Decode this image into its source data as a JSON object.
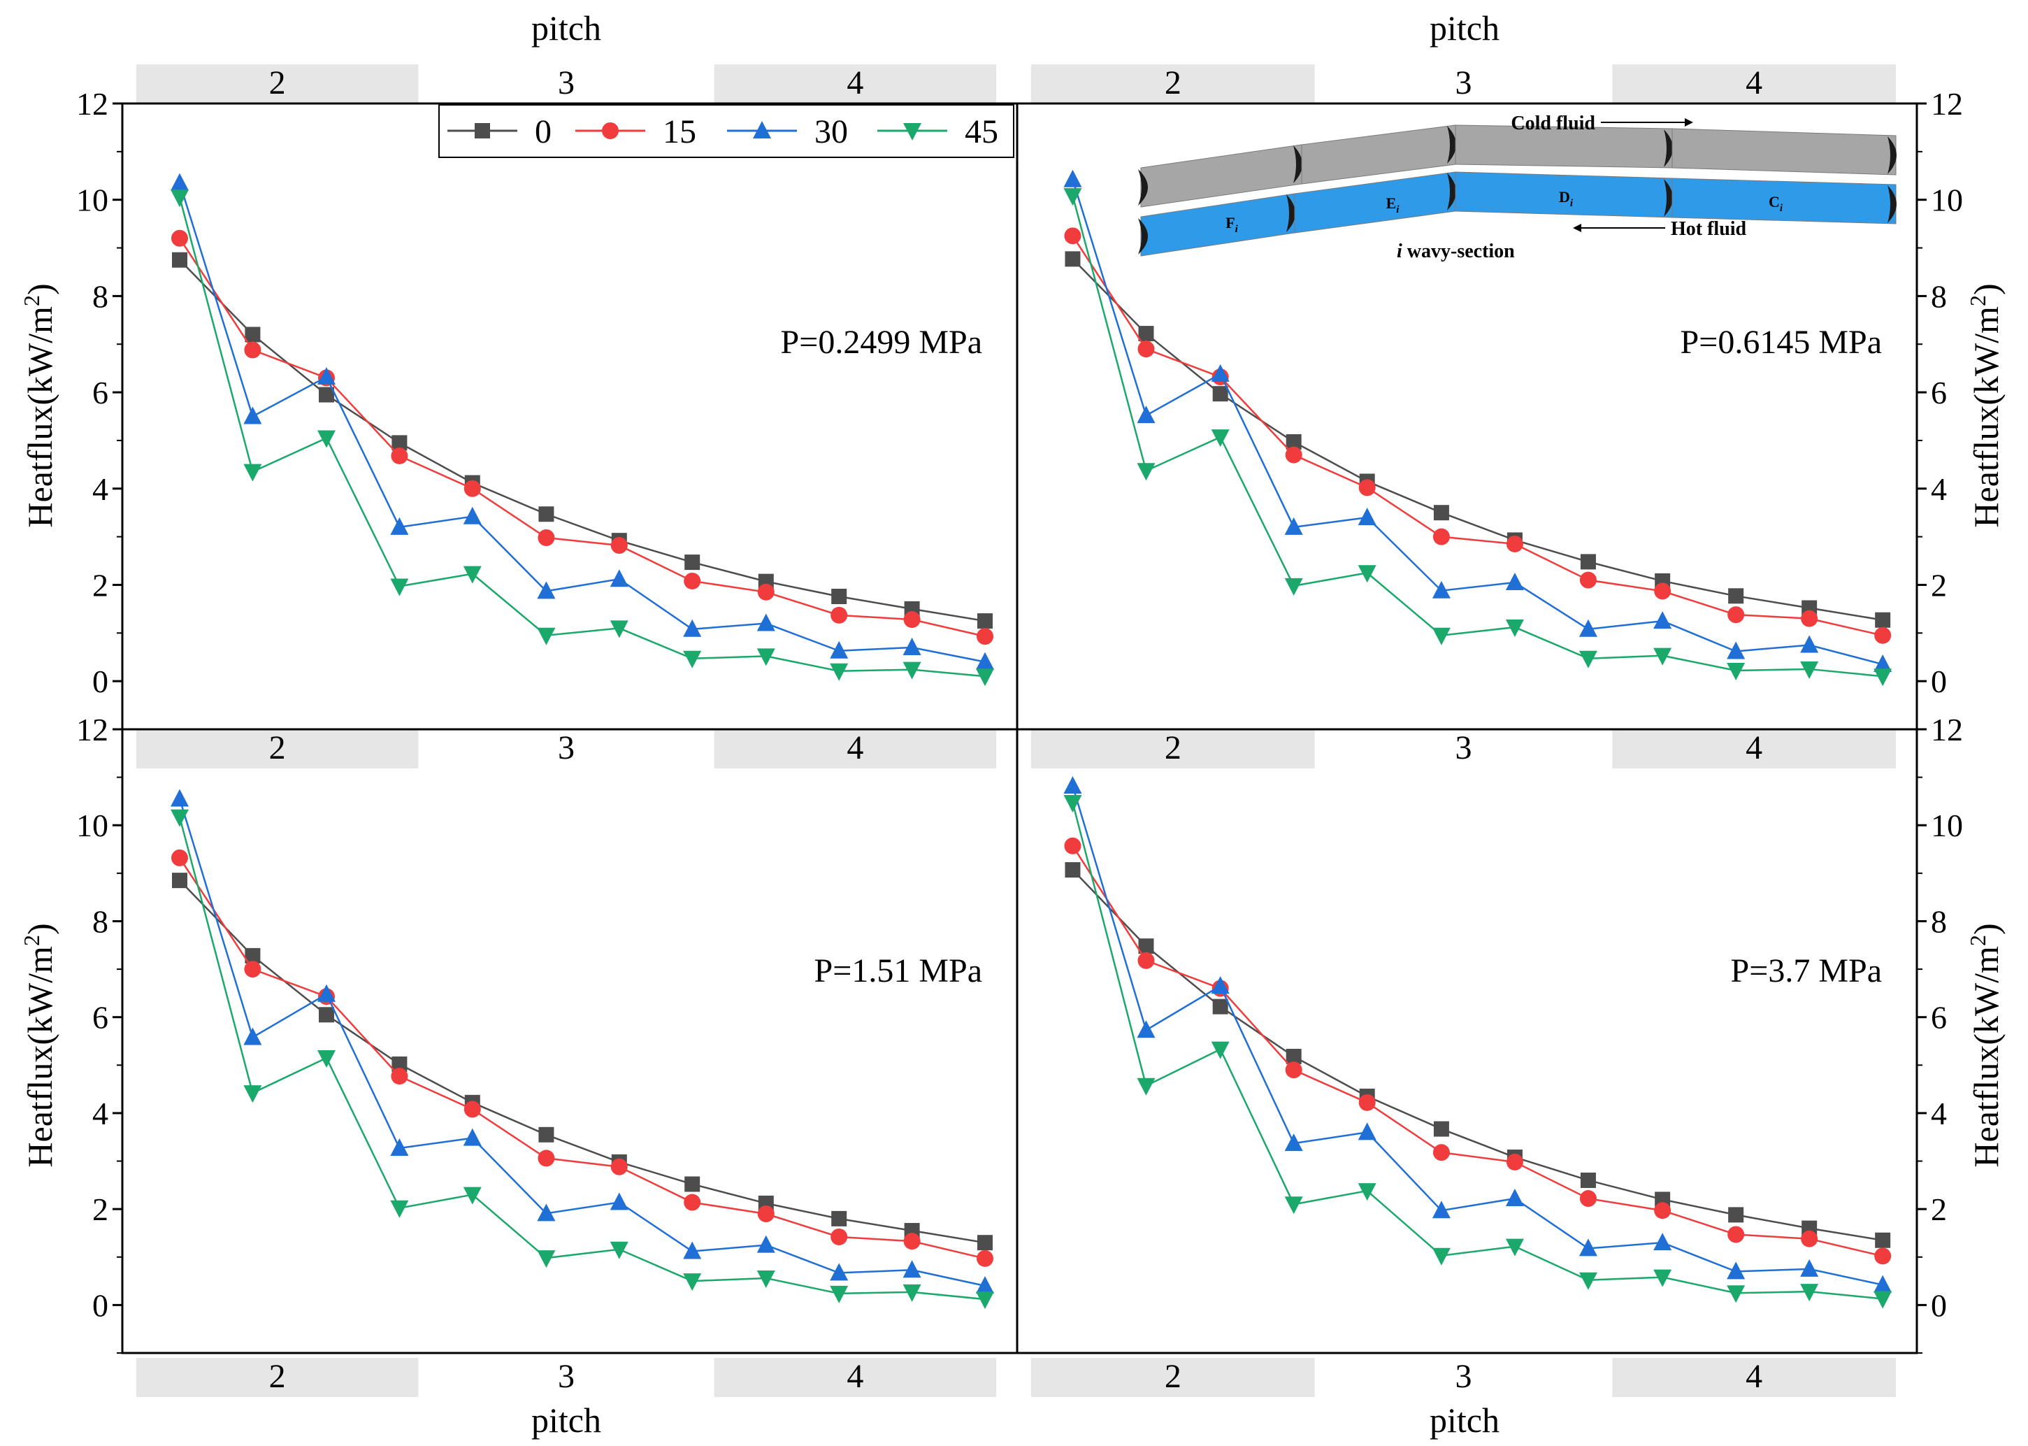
{
  "top_axis_title": "pitch",
  "bottom_axis_title": "pitch",
  "ylabel": "Heatflux(kW/m",
  "ylabel_sup": "2",
  "ylabel_close": ")",
  "legend": [
    {
      "label": "0",
      "color": "#4d4d4d",
      "marker": "square"
    },
    {
      "label": "15",
      "color": "#f03c3c",
      "marker": "circle"
    },
    {
      "label": "30",
      "color": "#1f6fd6",
      "marker": "triangle-up"
    },
    {
      "label": "45",
      "color": "#1aa86b",
      "marker": "triangle-down"
    }
  ],
  "inset": {
    "cold_label": "Cold fluid",
    "hot_label": "Hot fluid",
    "section_italic": "i",
    "section_label": " wavy-section",
    "segments": [
      "F",
      "E",
      "D",
      "C"
    ],
    "subscript": "i",
    "colors": {
      "cold": "#a6a6a6",
      "hot": "#2f9be8",
      "end": "#1b1b1b"
    }
  },
  "chart_data": [
    {
      "type": "line",
      "panel": "top-left",
      "annotation": "P=0.2499 MPa",
      "pitch_bands": [
        "2",
        "3",
        "4"
      ],
      "x": [
        1,
        2,
        3,
        4,
        5,
        6,
        7,
        8,
        9,
        10,
        11,
        12
      ],
      "ylim": [
        -1,
        12
      ],
      "yticks": [
        "0",
        "2",
        "4",
        "6",
        "8",
        "10",
        "12"
      ],
      "y_axis_side": "left",
      "series": [
        {
          "name": "0",
          "values": [
            8.75,
            7.2,
            5.95,
            4.95,
            4.12,
            3.47,
            2.92,
            2.47,
            2.07,
            1.76,
            1.5,
            1.25
          ]
        },
        {
          "name": "15",
          "values": [
            9.2,
            6.88,
            6.3,
            4.68,
            4.0,
            2.98,
            2.82,
            2.08,
            1.85,
            1.37,
            1.28,
            0.93
          ]
        },
        {
          "name": "30",
          "values": [
            10.35,
            5.5,
            6.32,
            3.2,
            3.42,
            1.87,
            2.12,
            1.08,
            1.2,
            0.63,
            0.7,
            0.4
          ]
        },
        {
          "name": "45",
          "values": [
            10.05,
            4.35,
            5.05,
            1.97,
            2.23,
            0.95,
            1.1,
            0.47,
            0.52,
            0.21,
            0.24,
            0.1
          ]
        }
      ]
    },
    {
      "type": "line",
      "panel": "top-right",
      "annotation": "P=0.6145 MPa",
      "pitch_bands": [
        "2",
        "3",
        "4"
      ],
      "x": [
        1,
        2,
        3,
        4,
        5,
        6,
        7,
        8,
        9,
        10,
        11,
        12
      ],
      "ylim": [
        -1,
        12
      ],
      "yticks": [
        "0",
        "2",
        "4",
        "6",
        "8",
        "10",
        "12"
      ],
      "y_axis_side": "right",
      "series": [
        {
          "name": "0",
          "values": [
            8.77,
            7.22,
            5.97,
            4.97,
            4.15,
            3.5,
            2.93,
            2.48,
            2.08,
            1.77,
            1.52,
            1.27
          ]
        },
        {
          "name": "15",
          "values": [
            9.25,
            6.9,
            6.32,
            4.7,
            4.02,
            3.0,
            2.85,
            2.1,
            1.87,
            1.38,
            1.3,
            0.95
          ]
        },
        {
          "name": "30",
          "values": [
            10.42,
            5.52,
            6.38,
            3.2,
            3.4,
            1.88,
            2.05,
            1.08,
            1.25,
            0.62,
            0.75,
            0.35
          ]
        },
        {
          "name": "45",
          "values": [
            10.08,
            4.37,
            5.07,
            1.98,
            2.25,
            0.95,
            1.12,
            0.47,
            0.53,
            0.22,
            0.25,
            0.1
          ]
        }
      ]
    },
    {
      "type": "line",
      "panel": "bottom-left",
      "annotation": "P=1.51 MPa",
      "pitch_bands": [
        "2",
        "3",
        "4"
      ],
      "x": [
        1,
        2,
        3,
        4,
        5,
        6,
        7,
        8,
        9,
        10,
        11,
        12
      ],
      "ylim": [
        -1,
        12
      ],
      "yticks": [
        "0",
        "2",
        "4",
        "6",
        "8",
        "10",
        "12"
      ],
      "y_axis_side": "left",
      "series": [
        {
          "name": "0",
          "values": [
            8.85,
            7.28,
            6.05,
            5.02,
            4.22,
            3.55,
            2.98,
            2.52,
            2.12,
            1.8,
            1.55,
            1.3
          ]
        },
        {
          "name": "15",
          "values": [
            9.32,
            7.0,
            6.43,
            4.77,
            4.08,
            3.06,
            2.88,
            2.14,
            1.9,
            1.42,
            1.33,
            0.97
          ]
        },
        {
          "name": "30",
          "values": [
            10.55,
            5.58,
            6.48,
            3.27,
            3.48,
            1.91,
            2.14,
            1.12,
            1.25,
            0.67,
            0.73,
            0.4
          ]
        },
        {
          "name": "45",
          "values": [
            10.17,
            4.42,
            5.15,
            2.02,
            2.3,
            0.98,
            1.16,
            0.5,
            0.56,
            0.24,
            0.27,
            0.12
          ]
        }
      ]
    },
    {
      "type": "line",
      "panel": "bottom-right",
      "annotation": "P=3.7 MPa",
      "pitch_bands": [
        "2",
        "3",
        "4"
      ],
      "x": [
        1,
        2,
        3,
        4,
        5,
        6,
        7,
        8,
        9,
        10,
        11,
        12
      ],
      "ylim": [
        -1,
        12
      ],
      "yticks": [
        "0",
        "2",
        "4",
        "6",
        "8",
        "10",
        "12"
      ],
      "y_axis_side": "right",
      "series": [
        {
          "name": "0",
          "values": [
            9.07,
            7.48,
            6.22,
            5.18,
            4.35,
            3.67,
            3.08,
            2.6,
            2.2,
            1.88,
            1.6,
            1.35
          ]
        },
        {
          "name": "15",
          "values": [
            9.57,
            7.18,
            6.6,
            4.9,
            4.22,
            3.18,
            2.98,
            2.22,
            1.97,
            1.47,
            1.38,
            1.02
          ]
        },
        {
          "name": "30",
          "values": [
            10.82,
            5.73,
            6.65,
            3.37,
            3.6,
            1.97,
            2.22,
            1.18,
            1.3,
            0.7,
            0.75,
            0.42
          ]
        },
        {
          "name": "45",
          "values": [
            10.47,
            4.57,
            5.33,
            2.1,
            2.38,
            1.03,
            1.22,
            0.52,
            0.58,
            0.25,
            0.28,
            0.13
          ]
        }
      ]
    }
  ]
}
